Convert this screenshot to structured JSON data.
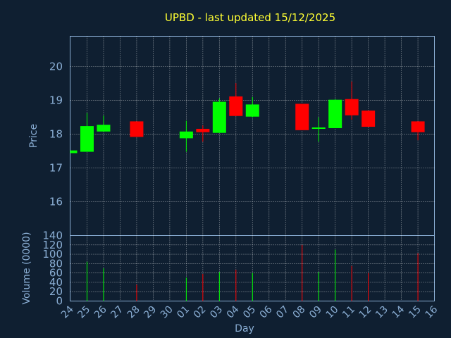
{
  "chart_data": {
    "type": "candlestick",
    "title": "UPBD - last updated 15/12/2025",
    "xlabel": "Day",
    "ylabel_price": "Price",
    "ylabel_volume": "Volume (0000)",
    "x_ticks": [
      "24",
      "25",
      "26",
      "27",
      "28",
      "29",
      "30",
      "01",
      "02",
      "03",
      "04",
      "05",
      "06",
      "07",
      "08",
      "09",
      "10",
      "11",
      "12",
      "13",
      "14",
      "15",
      "16"
    ],
    "price_ylim": [
      15.0,
      20.9
    ],
    "price_ticks": [
      16,
      17,
      18,
      19,
      20
    ],
    "volume_ylim": [
      0,
      140
    ],
    "volume_ticks": [
      0,
      20,
      40,
      60,
      80,
      100,
      120,
      140
    ],
    "grid": true,
    "colors": {
      "background": "#0f1f31",
      "up": "#00ff00",
      "down": "#ff0000",
      "axis": "#8aaed4",
      "title": "#ffff33",
      "grid": "#ffffff"
    },
    "candles": [
      {
        "day": "24",
        "open": 17.44,
        "high": 17.52,
        "low": 17.44,
        "close": 17.52,
        "volume": 0
      },
      {
        "day": "25",
        "open": 17.48,
        "high": 18.63,
        "low": 17.48,
        "close": 18.24,
        "volume": 84
      },
      {
        "day": "26",
        "open": 18.08,
        "high": 18.55,
        "low": 18.08,
        "close": 18.28,
        "volume": 70
      },
      {
        "day": "28",
        "open": 18.38,
        "high": 18.38,
        "low": 17.92,
        "close": 17.92,
        "volume": 35
      },
      {
        "day": "01",
        "open": 17.88,
        "high": 18.4,
        "low": 17.48,
        "close": 18.08,
        "volume": 50
      },
      {
        "day": "02",
        "open": 18.16,
        "high": 18.26,
        "low": 17.78,
        "close": 18.06,
        "volume": 58
      },
      {
        "day": "03",
        "open": 18.04,
        "high": 19.06,
        "low": 18.04,
        "close": 18.96,
        "volume": 62
      },
      {
        "day": "04",
        "open": 19.12,
        "high": 19.51,
        "low": 18.54,
        "close": 18.54,
        "volume": 67
      },
      {
        "day": "05",
        "open": 18.52,
        "high": 19.1,
        "low": 18.5,
        "close": 18.88,
        "volume": 60
      },
      {
        "day": "08",
        "open": 18.9,
        "high": 18.9,
        "low": 18.12,
        "close": 18.12,
        "volume": 120
      },
      {
        "day": "09",
        "open": 18.16,
        "high": 18.5,
        "low": 17.78,
        "close": 18.2,
        "volume": 62
      },
      {
        "day": "10",
        "open": 18.18,
        "high": 19.04,
        "low": 18.18,
        "close": 19.02,
        "volume": 110
      },
      {
        "day": "11",
        "open": 19.04,
        "high": 19.56,
        "low": 18.43,
        "close": 18.56,
        "volume": 75
      },
      {
        "day": "12",
        "open": 18.7,
        "high": 18.7,
        "low": 18.22,
        "close": 18.22,
        "volume": 60
      },
      {
        "day": "15",
        "open": 18.38,
        "high": 18.38,
        "low": 17.82,
        "close": 18.06,
        "volume": 102
      }
    ]
  }
}
